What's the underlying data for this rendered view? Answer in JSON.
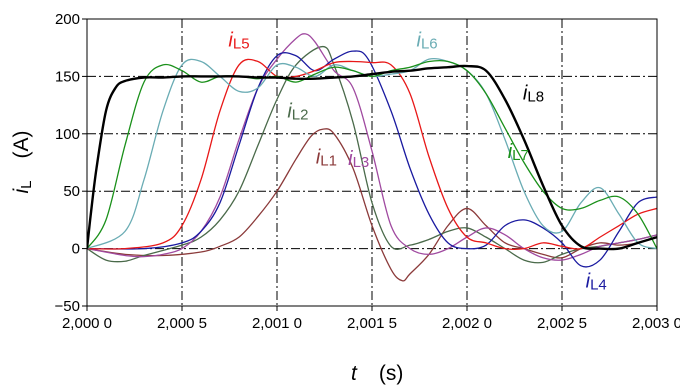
{
  "chart_data": {
    "type": "line",
    "xlabel": {
      "symbol": "t",
      "unit": "(s)"
    },
    "ylabel": {
      "symbol": "i",
      "subscript": "L",
      "unit": "(A)"
    },
    "xlim": [
      2.0,
      2.003
    ],
    "ylim": [
      -50,
      200
    ],
    "xticks": [
      2.0,
      2.0005,
      2.001,
      2.0015,
      2.002,
      2.0025,
      2.003
    ],
    "xtick_labels": [
      "2,000 0",
      "2,000 5",
      "2,001 0",
      "2,001 5",
      "2,002 0",
      "2,002 5",
      "2,003 0"
    ],
    "yticks": [
      -50,
      0,
      50,
      100,
      150,
      200
    ],
    "ytick_labels": [
      "−50",
      "0",
      "50",
      "100",
      "150",
      "200"
    ],
    "grid": {
      "x": true,
      "y": true,
      "style": "dash-dot"
    },
    "legend": "inline labels",
    "series": [
      {
        "name": "iL1",
        "label": {
          "base": "i",
          "sub": "L1"
        },
        "color": "#8B3A3A",
        "width": 1.3,
        "x": [
          2.0,
          2.0002,
          2.0004,
          2.0006,
          2.0007,
          2.0008,
          2.0009,
          2.001,
          2.0011,
          2.00118,
          2.00124,
          2.0013,
          2.0014,
          2.0015,
          2.0016,
          2.00166,
          2.0017,
          2.0018,
          2.0019,
          2.002,
          2.0021,
          2.0022,
          2.0023,
          2.0024,
          2.0025,
          2.0026,
          2.0027,
          2.0028,
          2.0029,
          2.003
        ],
        "y": [
          0,
          -5,
          -6,
          -3,
          2,
          10,
          28,
          50,
          78,
          98,
          104,
          100,
          70,
          20,
          -18,
          -28,
          -22,
          -5,
          20,
          35,
          20,
          5,
          0,
          -5,
          -8,
          0,
          5,
          3,
          5,
          10
        ]
      },
      {
        "name": "iL2",
        "label": {
          "base": "i",
          "sub": "L2"
        },
        "color": "#4A6A4A",
        "width": 1.3,
        "x": [
          2.0,
          2.0001,
          2.0002,
          2.0003,
          2.0005,
          2.0006,
          2.0007,
          2.0008,
          2.0009,
          2.001,
          2.0011,
          2.00124,
          2.0013,
          2.0014,
          2.0015,
          2.0016,
          2.0017,
          2.0018,
          2.0019,
          2.002,
          2.0021,
          2.0022,
          2.0023,
          2.0024,
          2.0025,
          2.0026,
          2.0027,
          2.0028,
          2.0029,
          2.003
        ],
        "y": [
          0,
          -10,
          -11,
          -6,
          3,
          10,
          25,
          50,
          90,
          130,
          160,
          176,
          160,
          110,
          40,
          2,
          3,
          8,
          15,
          18,
          10,
          0,
          -10,
          -12,
          -5,
          0,
          2,
          5,
          8,
          12
        ]
      },
      {
        "name": "iL3",
        "label": {
          "base": "i",
          "sub": "L3"
        },
        "color": "#A04AA0",
        "width": 1.3,
        "x": [
          2.0,
          2.0002,
          2.0003,
          2.0004,
          2.0005,
          2.0006,
          2.0007,
          2.0008,
          2.0009,
          2.001,
          2.0011,
          2.00115,
          2.0012,
          2.0013,
          2.0014,
          2.0015,
          2.0016,
          2.0017,
          2.0018,
          2.0019,
          2.002,
          2.0021,
          2.0022,
          2.0023,
          2.0024,
          2.0025,
          2.0026,
          2.0027,
          2.0028,
          2.0029,
          2.003
        ],
        "y": [
          0,
          -6,
          -7,
          -5,
          0,
          15,
          45,
          95,
          140,
          165,
          183,
          187,
          180,
          155,
          140,
          85,
          20,
          0,
          -5,
          0,
          10,
          18,
          12,
          0,
          -8,
          -10,
          -5,
          2,
          5,
          8,
          12
        ]
      },
      {
        "name": "iL4",
        "label": {
          "base": "i",
          "sub": "L4"
        },
        "color": "#1A1AA0",
        "width": 1.3,
        "x": [
          2.0,
          2.0003,
          2.0005,
          2.0006,
          2.0007,
          2.0008,
          2.0009,
          2.001,
          2.0011,
          2.0012,
          2.0013,
          2.0014,
          2.00148,
          2.0016,
          2.0017,
          2.0018,
          2.0019,
          2.002,
          2.0021,
          2.0022,
          2.0023,
          2.0024,
          2.0025,
          2.0026,
          2.0027,
          2.0028,
          2.0029,
          2.003
        ],
        "y": [
          0,
          0,
          5,
          15,
          40,
          90,
          140,
          168,
          168,
          155,
          165,
          172,
          165,
          120,
          70,
          30,
          5,
          0,
          3,
          20,
          25,
          18,
          5,
          -15,
          -10,
          15,
          40,
          45
        ]
      },
      {
        "name": "iL5",
        "label": {
          "base": "i",
          "sub": "L5"
        },
        "color": "#E81818",
        "width": 1.3,
        "x": [
          2.0,
          2.0002,
          2.0004,
          2.0005,
          2.0006,
          2.0007,
          2.0008,
          2.0009,
          2.001,
          2.0011,
          2.0012,
          2.0013,
          2.0014,
          2.0015,
          2.0016,
          2.0017,
          2.0018,
          2.0019,
          2.002,
          2.0021,
          2.0022,
          2.0023,
          2.0024,
          2.0025,
          2.0026,
          2.0027,
          2.0028,
          2.0029,
          2.003
        ],
        "y": [
          0,
          0,
          5,
          20,
          60,
          120,
          160,
          163,
          150,
          150,
          155,
          162,
          163,
          162,
          160,
          135,
          80,
          35,
          10,
          5,
          0,
          0,
          5,
          2,
          0,
          10,
          20,
          30,
          35
        ]
      },
      {
        "name": "iL6",
        "label": {
          "base": "i",
          "sub": "L6"
        },
        "color": "#6AACB4",
        "width": 1.3,
        "x": [
          2.0,
          2.0002,
          2.0003,
          2.0004,
          2.0005,
          2.0006,
          2.0007,
          2.0008,
          2.0009,
          2.001,
          2.0011,
          2.0012,
          2.0013,
          2.0014,
          2.0015,
          2.0016,
          2.0017,
          2.0018,
          2.0019,
          2.002,
          2.0021,
          2.0022,
          2.0023,
          2.0024,
          2.0025,
          2.0026,
          2.0027,
          2.0028,
          2.0029,
          2.003
        ],
        "y": [
          0,
          15,
          60,
          120,
          160,
          163,
          150,
          137,
          140,
          160,
          158,
          150,
          160,
          155,
          150,
          152,
          155,
          165,
          163,
          155,
          135,
          95,
          50,
          20,
          15,
          40,
          53,
          30,
          5,
          0
        ]
      },
      {
        "name": "iL7",
        "label": {
          "base": "i",
          "sub": "L7"
        },
        "color": "#1A901A",
        "width": 1.3,
        "x": [
          2.0,
          2.0001,
          2.0002,
          2.0003,
          2.0004,
          2.0005,
          2.0006,
          2.0007,
          2.0008,
          2.0009,
          2.001,
          2.0011,
          2.0012,
          2.0013,
          2.0014,
          2.0015,
          2.0016,
          2.0017,
          2.0018,
          2.0019,
          2.002,
          2.0021,
          2.0022,
          2.0023,
          2.0024,
          2.0025,
          2.0026,
          2.0027,
          2.0028,
          2.0029,
          2.003
        ],
        "y": [
          0,
          25,
          90,
          145,
          160,
          155,
          145,
          150,
          150,
          148,
          150,
          145,
          152,
          158,
          155,
          150,
          155,
          158,
          163,
          163,
          155,
          135,
          105,
          75,
          50,
          35,
          35,
          42,
          45,
          30,
          0
        ]
      },
      {
        "name": "iL8",
        "label": {
          "base": "i",
          "sub": "L8"
        },
        "color": "#000000",
        "width": 2.4,
        "x": [
          2.0,
          2.00002,
          2.00005,
          2.0001,
          2.00015,
          2.0002,
          2.0003,
          2.0004,
          2.0005,
          2.0006,
          2.0007,
          2.0008,
          2.0009,
          2.001,
          2.0011,
          2.0012,
          2.0013,
          2.0014,
          2.0015,
          2.0016,
          2.0017,
          2.0018,
          2.0019,
          2.002,
          2.0021,
          2.0022,
          2.0023,
          2.0024,
          2.0025,
          2.0026,
          2.0027,
          2.0028,
          2.0029,
          2.003
        ],
        "y": [
          0,
          30,
          70,
          120,
          140,
          146,
          149,
          149,
          150,
          150,
          150,
          150,
          149,
          149,
          148,
          148,
          149,
          150,
          152,
          154,
          155,
          157,
          158,
          159,
          155,
          130,
          95,
          55,
          20,
          2,
          0,
          0,
          5,
          10
        ]
      }
    ]
  }
}
